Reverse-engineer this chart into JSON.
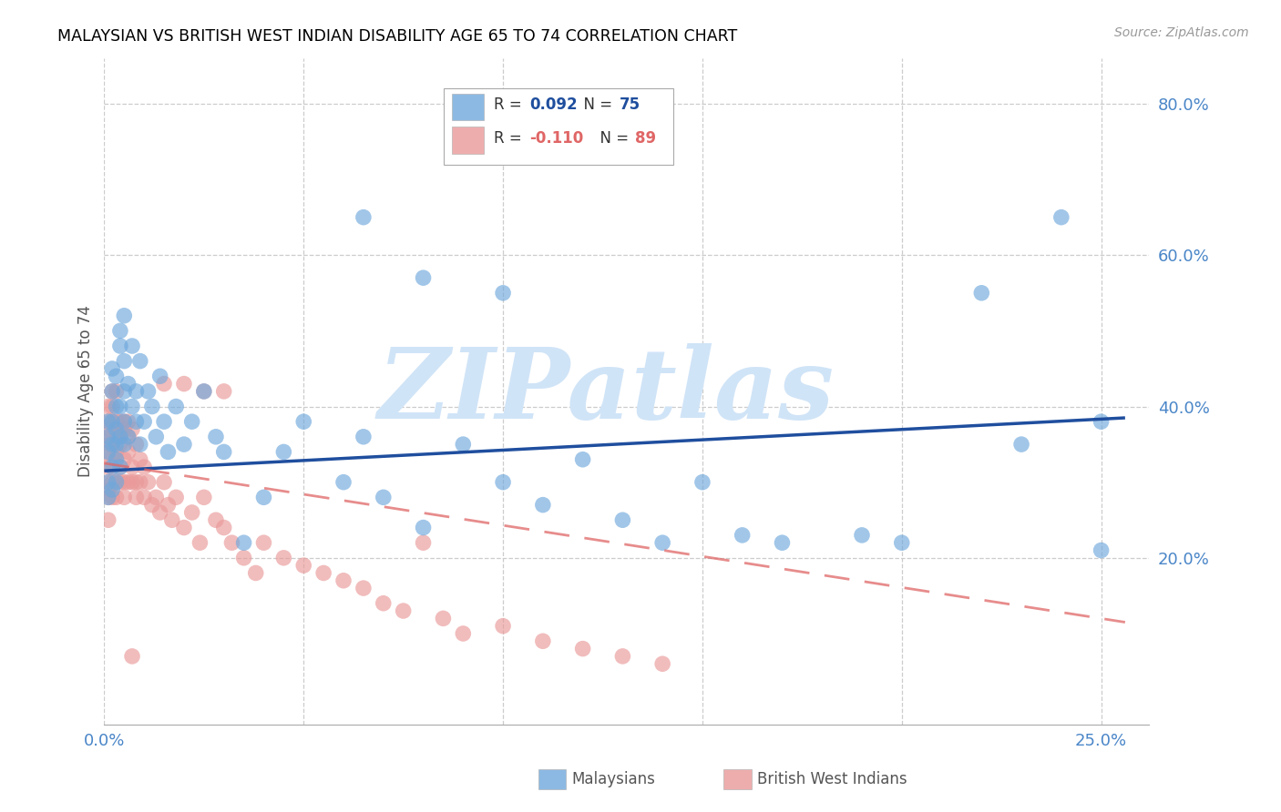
{
  "title": "MALAYSIAN VS BRITISH WEST INDIAN DISABILITY AGE 65 TO 74 CORRELATION CHART",
  "source": "Source: ZipAtlas.com",
  "ylabel": "Disability Age 65 to 74",
  "xlim": [
    0.0,
    0.262
  ],
  "ylim": [
    -0.02,
    0.86
  ],
  "r_malaysian": 0.092,
  "n_malaysian": 75,
  "r_bwi": -0.11,
  "n_bwi": 89,
  "blue_color": "#6fa8dc",
  "pink_color": "#ea9999",
  "blue_line_color": "#1f4e9e",
  "pink_line_color": "#e06666",
  "background_color": "#ffffff",
  "grid_color": "#cccccc",
  "watermark": "ZIPatlas",
  "watermark_color": "#d0e4f7",
  "title_color": "#000000",
  "axis_color": "#4a86c8",
  "mal_line_x0": 0.0,
  "mal_line_x1": 0.256,
  "mal_line_y0": 0.315,
  "mal_line_y1": 0.385,
  "bwi_line_x0": 0.0,
  "bwi_line_x1": 0.256,
  "bwi_line_y0": 0.325,
  "bwi_line_y1": 0.115,
  "malaysian_x": [
    0.001,
    0.001,
    0.001,
    0.001,
    0.001,
    0.002,
    0.002,
    0.002,
    0.002,
    0.002,
    0.002,
    0.003,
    0.003,
    0.003,
    0.003,
    0.003,
    0.003,
    0.004,
    0.004,
    0.004,
    0.004,
    0.004,
    0.005,
    0.005,
    0.005,
    0.005,
    0.005,
    0.006,
    0.006,
    0.007,
    0.007,
    0.008,
    0.008,
    0.009,
    0.009,
    0.01,
    0.011,
    0.012,
    0.013,
    0.014,
    0.015,
    0.016,
    0.018,
    0.02,
    0.022,
    0.025,
    0.028,
    0.03,
    0.035,
    0.04,
    0.045,
    0.05,
    0.06,
    0.065,
    0.07,
    0.08,
    0.09,
    0.1,
    0.11,
    0.12,
    0.13,
    0.14,
    0.15,
    0.16,
    0.17,
    0.19,
    0.2,
    0.22,
    0.23,
    0.24,
    0.25,
    0.25,
    0.1,
    0.065,
    0.08
  ],
  "malaysian_y": [
    0.34,
    0.3,
    0.28,
    0.38,
    0.36,
    0.32,
    0.35,
    0.38,
    0.29,
    0.42,
    0.45,
    0.33,
    0.37,
    0.4,
    0.44,
    0.35,
    0.3,
    0.32,
    0.36,
    0.4,
    0.48,
    0.5,
    0.38,
    0.42,
    0.35,
    0.46,
    0.52,
    0.36,
    0.43,
    0.4,
    0.48,
    0.38,
    0.42,
    0.46,
    0.35,
    0.38,
    0.42,
    0.4,
    0.36,
    0.44,
    0.38,
    0.34,
    0.4,
    0.35,
    0.38,
    0.42,
    0.36,
    0.34,
    0.22,
    0.28,
    0.34,
    0.38,
    0.3,
    0.36,
    0.28,
    0.24,
    0.35,
    0.3,
    0.27,
    0.33,
    0.25,
    0.22,
    0.3,
    0.23,
    0.22,
    0.23,
    0.22,
    0.55,
    0.35,
    0.65,
    0.38,
    0.21,
    0.55,
    0.65,
    0.57
  ],
  "bwi_x": [
    0.001,
    0.001,
    0.001,
    0.001,
    0.001,
    0.001,
    0.001,
    0.001,
    0.001,
    0.001,
    0.001,
    0.001,
    0.002,
    0.002,
    0.002,
    0.002,
    0.002,
    0.002,
    0.002,
    0.002,
    0.003,
    0.003,
    0.003,
    0.003,
    0.003,
    0.003,
    0.003,
    0.004,
    0.004,
    0.004,
    0.004,
    0.004,
    0.005,
    0.005,
    0.005,
    0.005,
    0.005,
    0.006,
    0.006,
    0.006,
    0.006,
    0.007,
    0.007,
    0.007,
    0.008,
    0.008,
    0.008,
    0.009,
    0.009,
    0.01,
    0.01,
    0.011,
    0.012,
    0.013,
    0.014,
    0.015,
    0.016,
    0.017,
    0.018,
    0.02,
    0.022,
    0.024,
    0.025,
    0.028,
    0.03,
    0.032,
    0.035,
    0.038,
    0.04,
    0.045,
    0.05,
    0.055,
    0.06,
    0.065,
    0.07,
    0.075,
    0.08,
    0.085,
    0.09,
    0.1,
    0.11,
    0.12,
    0.13,
    0.14,
    0.015,
    0.02,
    0.025,
    0.03,
    0.007
  ],
  "bwi_y": [
    0.32,
    0.36,
    0.3,
    0.34,
    0.38,
    0.28,
    0.35,
    0.4,
    0.29,
    0.33,
    0.37,
    0.25,
    0.3,
    0.35,
    0.38,
    0.32,
    0.42,
    0.28,
    0.36,
    0.4,
    0.33,
    0.37,
    0.3,
    0.38,
    0.34,
    0.28,
    0.42,
    0.35,
    0.3,
    0.38,
    0.32,
    0.36,
    0.33,
    0.37,
    0.3,
    0.38,
    0.28,
    0.34,
    0.38,
    0.3,
    0.36,
    0.32,
    0.37,
    0.3,
    0.35,
    0.3,
    0.28,
    0.33,
    0.3,
    0.32,
    0.28,
    0.3,
    0.27,
    0.28,
    0.26,
    0.3,
    0.27,
    0.25,
    0.28,
    0.24,
    0.26,
    0.22,
    0.28,
    0.25,
    0.24,
    0.22,
    0.2,
    0.18,
    0.22,
    0.2,
    0.19,
    0.18,
    0.17,
    0.16,
    0.14,
    0.13,
    0.22,
    0.12,
    0.1,
    0.11,
    0.09,
    0.08,
    0.07,
    0.06,
    0.43,
    0.43,
    0.42,
    0.42,
    0.07
  ]
}
